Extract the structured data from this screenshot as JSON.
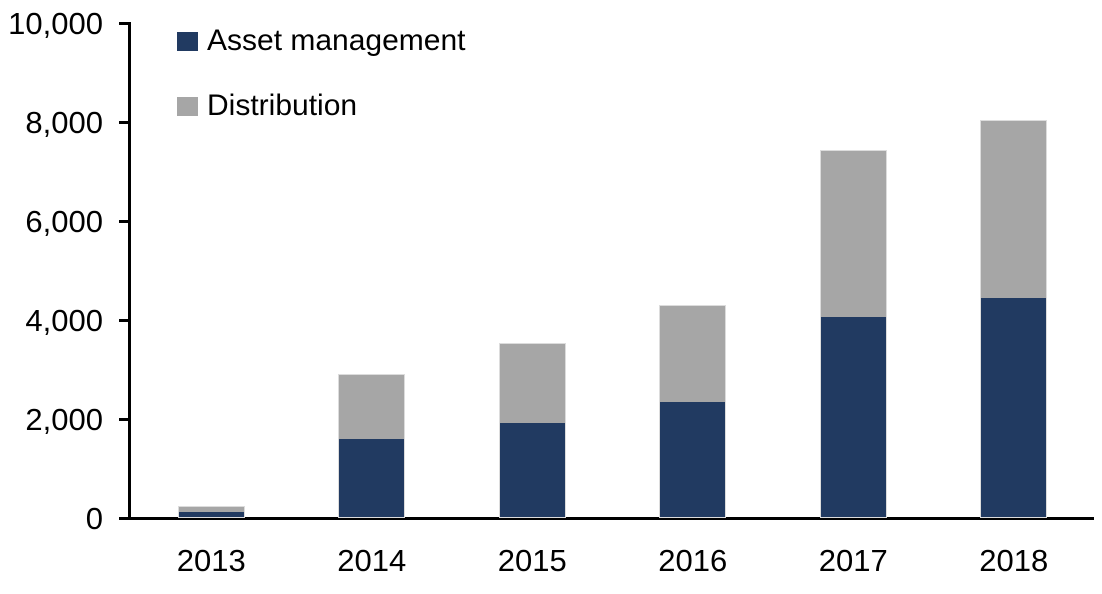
{
  "chart_data": {
    "type": "bar",
    "stacked": true,
    "title": "",
    "xlabel": "",
    "ylabel": "",
    "categories": [
      "2013",
      "2014",
      "2015",
      "2016",
      "2017",
      "2018"
    ],
    "series": [
      {
        "name": "Asset management",
        "color": "#213A61",
        "values": [
          100,
          1570,
          1900,
          2320,
          4050,
          4420
        ]
      },
      {
        "name": "Distribution",
        "color": "#A6A6A6",
        "values": [
          100,
          1300,
          1600,
          1940,
          3340,
          3580
        ]
      }
    ],
    "totals": [
      200,
      2870,
      3500,
      4260,
      7390,
      8000
    ],
    "ylim": [
      0,
      10000
    ],
    "ytick_step": 2000,
    "ytick_labels": [
      "0",
      "2,000",
      "4,000",
      "6,000",
      "8,000",
      "10,000"
    ],
    "grid": false,
    "legend_position": "top-left",
    "axis_color": "#000000",
    "background_color": "#FFFFFF"
  }
}
